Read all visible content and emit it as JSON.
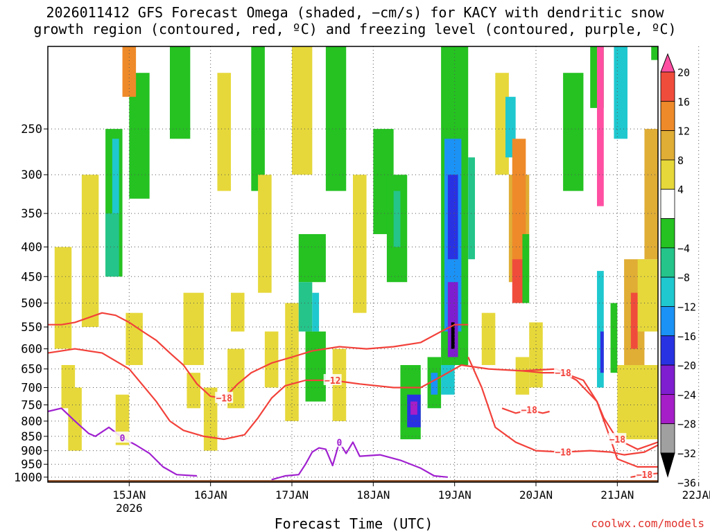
{
  "title": {
    "line1": "2026011412 GFS Forecast Omega (shaded, −cm/s) for KACY with dendritic snow",
    "line2": "growth region (contoured, red, ºC) and freezing level (contoured, purple, ºC)"
  },
  "x_axis_label": "Forecast Time (UTC)",
  "credit": "coolwx.com/models",
  "chart_data": {
    "type": "heatmap",
    "y_axis": {
      "label": "",
      "range": [
        1020,
        180
      ],
      "ticks": [
        "250",
        "300",
        "350",
        "400",
        "450",
        "500",
        "550",
        "600",
        "650",
        "700",
        "750",
        "800",
        "850",
        "900",
        "950",
        "1000"
      ]
    },
    "x_axis": {
      "range_hours": [
        -12,
        168
      ],
      "ticks": [
        {
          "label": "15JAN",
          "sub": "2026",
          "hour": 12
        },
        {
          "label": "16JAN",
          "sub": "",
          "hour": 36
        },
        {
          "label": "17JAN",
          "sub": "",
          "hour": 60
        },
        {
          "label": "18JAN",
          "sub": "",
          "hour": 84
        },
        {
          "label": "19JAN",
          "sub": "",
          "hour": 108
        },
        {
          "label": "20JAN",
          "sub": "",
          "hour": 132
        },
        {
          "label": "21JAN",
          "sub": "",
          "hour": 156
        },
        {
          "label": "22JAN",
          "sub": "",
          "hour": 180
        }
      ]
    },
    "colorbar": {
      "labels": [
        "20",
        "16",
        "12",
        "8",
        "4",
        "−4",
        "−8",
        "−12",
        "−16",
        "−20",
        "−24",
        "−28",
        "−32",
        "−36"
      ],
      "bins": [
        {
          "min": 20,
          "max": 24,
          "color": "#ff4fa3"
        },
        {
          "min": 16,
          "max": 20,
          "color": "#f04c3c"
        },
        {
          "min": 12,
          "max": 16,
          "color": "#ee8a2a"
        },
        {
          "min": 8,
          "max": 12,
          "color": "#e0ad35"
        },
        {
          "min": 4,
          "max": 8,
          "color": "#e6d83a"
        },
        {
          "min": -4,
          "max": 4,
          "color": "#ffffff"
        },
        {
          "min": -8,
          "max": -4,
          "color": "#25c221"
        },
        {
          "min": -12,
          "max": -8,
          "color": "#24c48a"
        },
        {
          "min": -16,
          "max": -12,
          "color": "#1fc8cf"
        },
        {
          "min": -20,
          "max": -16,
          "color": "#1b92f5"
        },
        {
          "min": -24,
          "max": -20,
          "color": "#2932e2"
        },
        {
          "min": -28,
          "max": -24,
          "color": "#7e1ed0"
        },
        {
          "min": -32,
          "max": -28,
          "color": "#a51ec8"
        },
        {
          "min": -36,
          "max": -32,
          "color": "#a0a0a0"
        },
        {
          "min": -40,
          "max": -36,
          "color": "#000000"
        }
      ]
    },
    "omega_cells": [
      {
        "h0": -10,
        "h1": -5,
        "p0": 400,
        "p1": 600,
        "v": 5
      },
      {
        "h0": -6,
        "h1": -2,
        "p0": 700,
        "p1": 900,
        "v": 5
      },
      {
        "h0": -2,
        "h1": 3,
        "p0": 300,
        "p1": 550,
        "v": 5
      },
      {
        "h0": -8,
        "h1": -4,
        "p0": 640,
        "p1": 760,
        "v": 5
      },
      {
        "h0": 5,
        "h1": 10,
        "p0": 250,
        "p1": 450,
        "v": -6
      },
      {
        "h0": 7,
        "h1": 9,
        "p0": 260,
        "p1": 350,
        "v": -14
      },
      {
        "h0": 5,
        "h1": 9,
        "p0": 350,
        "p1": 450,
        "v": -10
      },
      {
        "h0": 12,
        "h1": 18,
        "p0": 200,
        "p1": 330,
        "v": -6
      },
      {
        "h0": 10,
        "h1": 14,
        "p0": 180,
        "p1": 220,
        "v": 14
      },
      {
        "h0": 11,
        "h1": 16,
        "p0": 520,
        "p1": 640,
        "v": 5
      },
      {
        "h0": 8,
        "h1": 12,
        "p0": 720,
        "p1": 880,
        "v": 5
      },
      {
        "h0": 24,
        "h1": 30,
        "p0": 180,
        "p1": 260,
        "v": -6
      },
      {
        "h0": 28,
        "h1": 34,
        "p0": 480,
        "p1": 640,
        "v": 5
      },
      {
        "h0": 29,
        "h1": 33,
        "p0": 660,
        "p1": 760,
        "v": 5
      },
      {
        "h0": 34,
        "h1": 38,
        "p0": 700,
        "p1": 900,
        "v": 5
      },
      {
        "h0": 38,
        "h1": 42,
        "p0": 200,
        "p1": 320,
        "v": 5
      },
      {
        "h0": 41,
        "h1": 46,
        "p0": 600,
        "p1": 760,
        "v": 5
      },
      {
        "h0": 42,
        "h1": 46,
        "p0": 480,
        "p1": 560,
        "v": 5
      },
      {
        "h0": 48,
        "h1": 52,
        "p0": 180,
        "p1": 320,
        "v": -6
      },
      {
        "h0": 50,
        "h1": 54,
        "p0": 300,
        "p1": 480,
        "v": 5
      },
      {
        "h0": 52,
        "h1": 56,
        "p0": 560,
        "p1": 700,
        "v": 5
      },
      {
        "h0": 58,
        "h1": 62,
        "p0": 500,
        "p1": 800,
        "v": 5
      },
      {
        "h0": 60,
        "h1": 66,
        "p0": 180,
        "p1": 300,
        "v": 5
      },
      {
        "h0": 62,
        "h1": 70,
        "p0": 380,
        "p1": 460,
        "v": -6
      },
      {
        "h0": 62,
        "h1": 66,
        "p0": 460,
        "p1": 560,
        "v": -10
      },
      {
        "h0": 64,
        "h1": 70,
        "p0": 560,
        "p1": 740,
        "v": -6
      },
      {
        "h0": 66,
        "h1": 68,
        "p0": 480,
        "p1": 560,
        "v": -14
      },
      {
        "h0": 70,
        "h1": 76,
        "p0": 180,
        "p1": 320,
        "v": -6
      },
      {
        "h0": 72,
        "h1": 76,
        "p0": 600,
        "p1": 800,
        "v": 5
      },
      {
        "h0": 78,
        "h1": 82,
        "p0": 300,
        "p1": 520,
        "v": 5
      },
      {
        "h0": 84,
        "h1": 90,
        "p0": 250,
        "p1": 380,
        "v": -6
      },
      {
        "h0": 88,
        "h1": 94,
        "p0": 300,
        "p1": 460,
        "v": -6
      },
      {
        "h0": 90,
        "h1": 92,
        "p0": 320,
        "p1": 400,
        "v": -12
      },
      {
        "h0": 92,
        "h1": 98,
        "p0": 640,
        "p1": 860,
        "v": -6
      },
      {
        "h0": 94,
        "h1": 98,
        "p0": 720,
        "p1": 820,
        "v": -22
      },
      {
        "h0": 95,
        "h1": 97,
        "p0": 740,
        "p1": 780,
        "v": -30
      },
      {
        "h0": 100,
        "h1": 104,
        "p0": 620,
        "p1": 760,
        "v": -6
      },
      {
        "h0": 101,
        "h1": 103,
        "p0": 660,
        "p1": 720,
        "v": -18
      },
      {
        "h0": 104,
        "h1": 112,
        "p0": 180,
        "p1": 640,
        "v": -6
      },
      {
        "h0": 105,
        "h1": 110,
        "p0": 260,
        "p1": 560,
        "v": -18
      },
      {
        "h0": 106,
        "h1": 109,
        "p0": 300,
        "p1": 420,
        "v": -22
      },
      {
        "h0": 106,
        "h1": 109,
        "p0": 460,
        "p1": 620,
        "v": -28
      },
      {
        "h0": 107,
        "h1": 108,
        "p0": 540,
        "p1": 600,
        "v": -38
      },
      {
        "h0": 104,
        "h1": 108,
        "p0": 640,
        "p1": 720,
        "v": -16
      },
      {
        "h0": 112,
        "h1": 114,
        "p0": 280,
        "p1": 420,
        "v": -10
      },
      {
        "h0": 116,
        "h1": 120,
        "p0": 520,
        "p1": 640,
        "v": 5
      },
      {
        "h0": 120,
        "h1": 124,
        "p0": 200,
        "p1": 300,
        "v": 5
      },
      {
        "h0": 123,
        "h1": 126,
        "p0": 220,
        "p1": 280,
        "v": -14
      },
      {
        "h0": 124,
        "h1": 130,
        "p0": 300,
        "p1": 460,
        "v": 10
      },
      {
        "h0": 125,
        "h1": 129,
        "p0": 260,
        "p1": 420,
        "v": 14
      },
      {
        "h0": 125,
        "h1": 129,
        "p0": 420,
        "p1": 500,
        "v": 18
      },
      {
        "h0": 126,
        "h1": 130,
        "p0": 620,
        "p1": 720,
        "v": 5
      },
      {
        "h0": 128,
        "h1": 130,
        "p0": 380,
        "p1": 500,
        "v": -6
      },
      {
        "h0": 130,
        "h1": 134,
        "p0": 540,
        "p1": 700,
        "v": 5
      },
      {
        "h0": 140,
        "h1": 146,
        "p0": 200,
        "p1": 320,
        "v": -6
      },
      {
        "h0": 148,
        "h1": 152,
        "p0": 180,
        "p1": 230,
        "v": -6
      },
      {
        "h0": 150,
        "h1": 152,
        "p0": 180,
        "p1": 340,
        "v": 22
      },
      {
        "h0": 150,
        "h1": 152,
        "p0": 440,
        "p1": 700,
        "v": -14
      },
      {
        "h0": 151,
        "h1": 152,
        "p0": 560,
        "p1": 660,
        "v": -22
      },
      {
        "h0": 154,
        "h1": 156,
        "p0": 500,
        "p1": 660,
        "v": -6
      },
      {
        "h0": 155,
        "h1": 159,
        "p0": 180,
        "p1": 260,
        "v": -14
      },
      {
        "h0": 158,
        "h1": 164,
        "p0": 420,
        "p1": 640,
        "v": 10
      },
      {
        "h0": 160,
        "h1": 162,
        "p0": 480,
        "p1": 600,
        "v": 18
      },
      {
        "h0": 162,
        "h1": 168,
        "p0": 420,
        "p1": 560,
        "v": 5
      },
      {
        "h0": 156,
        "h1": 168,
        "p0": 640,
        "p1": 860,
        "v": 5
      },
      {
        "h0": 164,
        "h1": 168,
        "p0": 250,
        "p1": 420,
        "v": 10
      },
      {
        "h0": 166,
        "h1": 168,
        "p0": 180,
        "p1": 190,
        "v": -6
      }
    ],
    "dgz_contours": [
      {
        "label": "−18",
        "points": [
          [
            -12,
            545
          ],
          [
            -8,
            545
          ],
          [
            -4,
            540
          ],
          [
            0,
            530
          ],
          [
            4,
            520
          ],
          [
            8,
            525
          ],
          [
            12,
            540
          ],
          [
            16,
            560
          ],
          [
            20,
            580
          ],
          [
            24,
            610
          ],
          [
            28,
            640
          ],
          [
            32,
            690
          ],
          [
            36,
            725
          ],
          [
            40,
            730
          ],
          [
            44,
            690
          ],
          [
            48,
            660
          ],
          [
            54,
            635
          ],
          [
            60,
            620
          ],
          [
            66,
            605
          ],
          [
            74,
            595
          ],
          [
            82,
            600
          ],
          [
            90,
            595
          ],
          [
            98,
            585
          ],
          [
            104,
            560
          ],
          [
            108,
            545
          ],
          [
            112,
            545
          ]
        ]
      },
      {
        "label": "−12",
        "points": [
          [
            -12,
            610
          ],
          [
            -4,
            600
          ],
          [
            4,
            610
          ],
          [
            12,
            650
          ],
          [
            20,
            740
          ],
          [
            24,
            800
          ],
          [
            28,
            830
          ],
          [
            34,
            850
          ],
          [
            40,
            860
          ],
          [
            46,
            845
          ],
          [
            50,
            790
          ],
          [
            54,
            730
          ],
          [
            58,
            695
          ],
          [
            64,
            680
          ],
          [
            72,
            680
          ],
          [
            80,
            690
          ],
          [
            90,
            700
          ],
          [
            98,
            700
          ],
          [
            104,
            670
          ],
          [
            110,
            640
          ],
          [
            118,
            650
          ],
          [
            128,
            655
          ],
          [
            138,
            650
          ],
          [
            144,
            680
          ],
          [
            150,
            740
          ],
          [
            154,
            860
          ],
          [
            156,
            930
          ],
          [
            162,
            960
          ],
          [
            168,
            960
          ]
        ]
      },
      {
        "label": "−18",
        "points": [
          [
            112,
            620
          ],
          [
            116,
            700
          ],
          [
            120,
            820
          ],
          [
            126,
            870
          ],
          [
            132,
            900
          ],
          [
            140,
            905
          ],
          [
            148,
            900
          ],
          [
            154,
            905
          ],
          [
            158,
            915
          ],
          [
            164,
            905
          ],
          [
            168,
            880
          ]
        ]
      },
      {
        "label": "−18",
        "points": [
          [
            128,
            655
          ],
          [
            134,
            660
          ],
          [
            140,
            660
          ],
          [
            146,
            680
          ],
          [
            150,
            740
          ]
        ]
      },
      {
        "label": "−18",
        "points": [
          [
            150,
            740
          ],
          [
            152,
            790
          ],
          [
            156,
            860
          ],
          [
            162,
            895
          ],
          [
            168,
            870
          ]
        ]
      },
      {
        "label": "−18",
        "points": [
          [
            160,
            1000
          ],
          [
            164,
            990
          ],
          [
            168,
            985
          ]
        ]
      },
      {
        "label": "−18",
        "points": [
          [
            122,
            760
          ],
          [
            126,
            775
          ],
          [
            130,
            765
          ],
          [
            134,
            775
          ],
          [
            136,
            770
          ]
        ]
      }
    ],
    "freezing_contours": [
      {
        "label": "0",
        "points": [
          [
            -12,
            770
          ],
          [
            -8,
            760
          ],
          [
            -4,
            800
          ],
          [
            0,
            840
          ],
          [
            2,
            850
          ],
          [
            6,
            820
          ],
          [
            10,
            855
          ],
          [
            14,
            880
          ],
          [
            18,
            910
          ],
          [
            22,
            960
          ],
          [
            26,
            990
          ],
          [
            32,
            995
          ]
        ]
      },
      {
        "label": "0",
        "points": [
          [
            54,
            1010
          ],
          [
            58,
            995
          ],
          [
            62,
            990
          ],
          [
            64,
            950
          ],
          [
            66,
            905
          ],
          [
            68,
            890
          ],
          [
            70,
            895
          ],
          [
            72,
            955
          ],
          [
            74,
            870
          ],
          [
            76,
            910
          ],
          [
            78,
            870
          ],
          [
            80,
            920
          ],
          [
            86,
            915
          ],
          [
            92,
            935
          ],
          [
            98,
            965
          ],
          [
            102,
            995
          ],
          [
            106,
            1000
          ]
        ]
      }
    ],
    "terrain_hpa": 1012
  }
}
